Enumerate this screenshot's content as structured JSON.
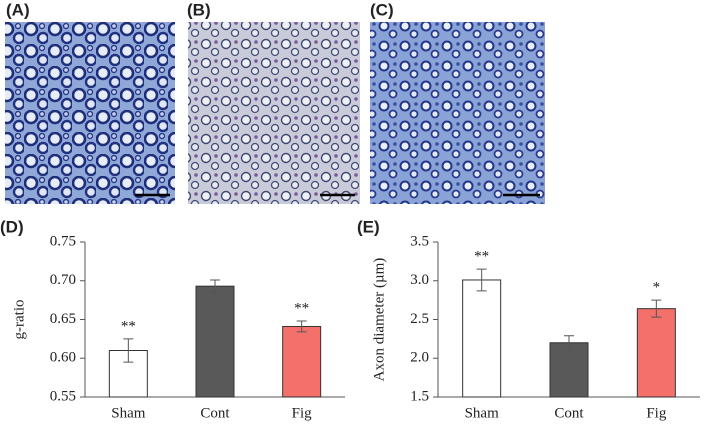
{
  "micrographs": [
    {
      "label": "(A)"
    },
    {
      "label": "(B)"
    },
    {
      "label": "(C)"
    }
  ],
  "chart_data": [
    {
      "type": "bar",
      "panel_label": "(D)",
      "y_label": "g-ratio",
      "categories": [
        "Sham",
        "Cont",
        "Fig"
      ],
      "values": [
        0.61,
        0.693,
        0.641
      ],
      "errors": [
        0.015,
        0.008,
        0.007
      ],
      "colors": [
        "#ffffff",
        "#595959",
        "#f4706a"
      ],
      "annotations": [
        "**",
        null,
        "**"
      ],
      "ylim": [
        0.55,
        0.75
      ],
      "yticks": [
        0.55,
        {
          "value": 0.6,
          "label": "0.60"
        },
        0.65,
        {
          "value": 0.7,
          "label": "0.70"
        },
        0.75
      ]
    },
    {
      "type": "bar",
      "panel_label": "(E)",
      "y_label": "Axon diameter (µm)",
      "categories": [
        "Sham",
        "Cont",
        "Fig"
      ],
      "values": [
        3.01,
        2.2,
        2.64
      ],
      "errors": [
        0.14,
        0.09,
        0.11
      ],
      "colors": [
        "#ffffff",
        "#595959",
        "#f4706a"
      ],
      "annotations": [
        "**",
        null,
        "*"
      ],
      "ylim": [
        1.5,
        3.5
      ],
      "yticks": [
        1.5,
        {
          "value": 2,
          "label": "2.0"
        },
        2.5,
        {
          "value": 3,
          "label": "3.0"
        },
        3.5
      ]
    }
  ]
}
